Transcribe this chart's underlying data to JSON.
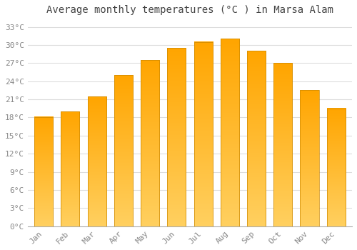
{
  "title": "Average monthly temperatures (°C ) in Marsa Alam",
  "months": [
    "Jan",
    "Feb",
    "Mar",
    "Apr",
    "May",
    "Jun",
    "Jul",
    "Aug",
    "Sep",
    "Oct",
    "Nov",
    "Dec"
  ],
  "temperatures": [
    18.1,
    19.0,
    21.5,
    25.0,
    27.5,
    29.5,
    30.5,
    31.0,
    29.0,
    27.0,
    22.5,
    19.5
  ],
  "bar_color_top": "#FFA500",
  "bar_color_bottom": "#FFD060",
  "bar_edge_color": "#CC8800",
  "yticks": [
    0,
    3,
    6,
    9,
    12,
    15,
    18,
    21,
    24,
    27,
    30,
    33
  ],
  "ylim": [
    0,
    34
  ],
  "background_color": "#FFFFFF",
  "grid_color": "#DDDDDD",
  "title_fontsize": 10,
  "tick_fontsize": 8,
  "font_color": "#888888",
  "bar_width": 0.7
}
